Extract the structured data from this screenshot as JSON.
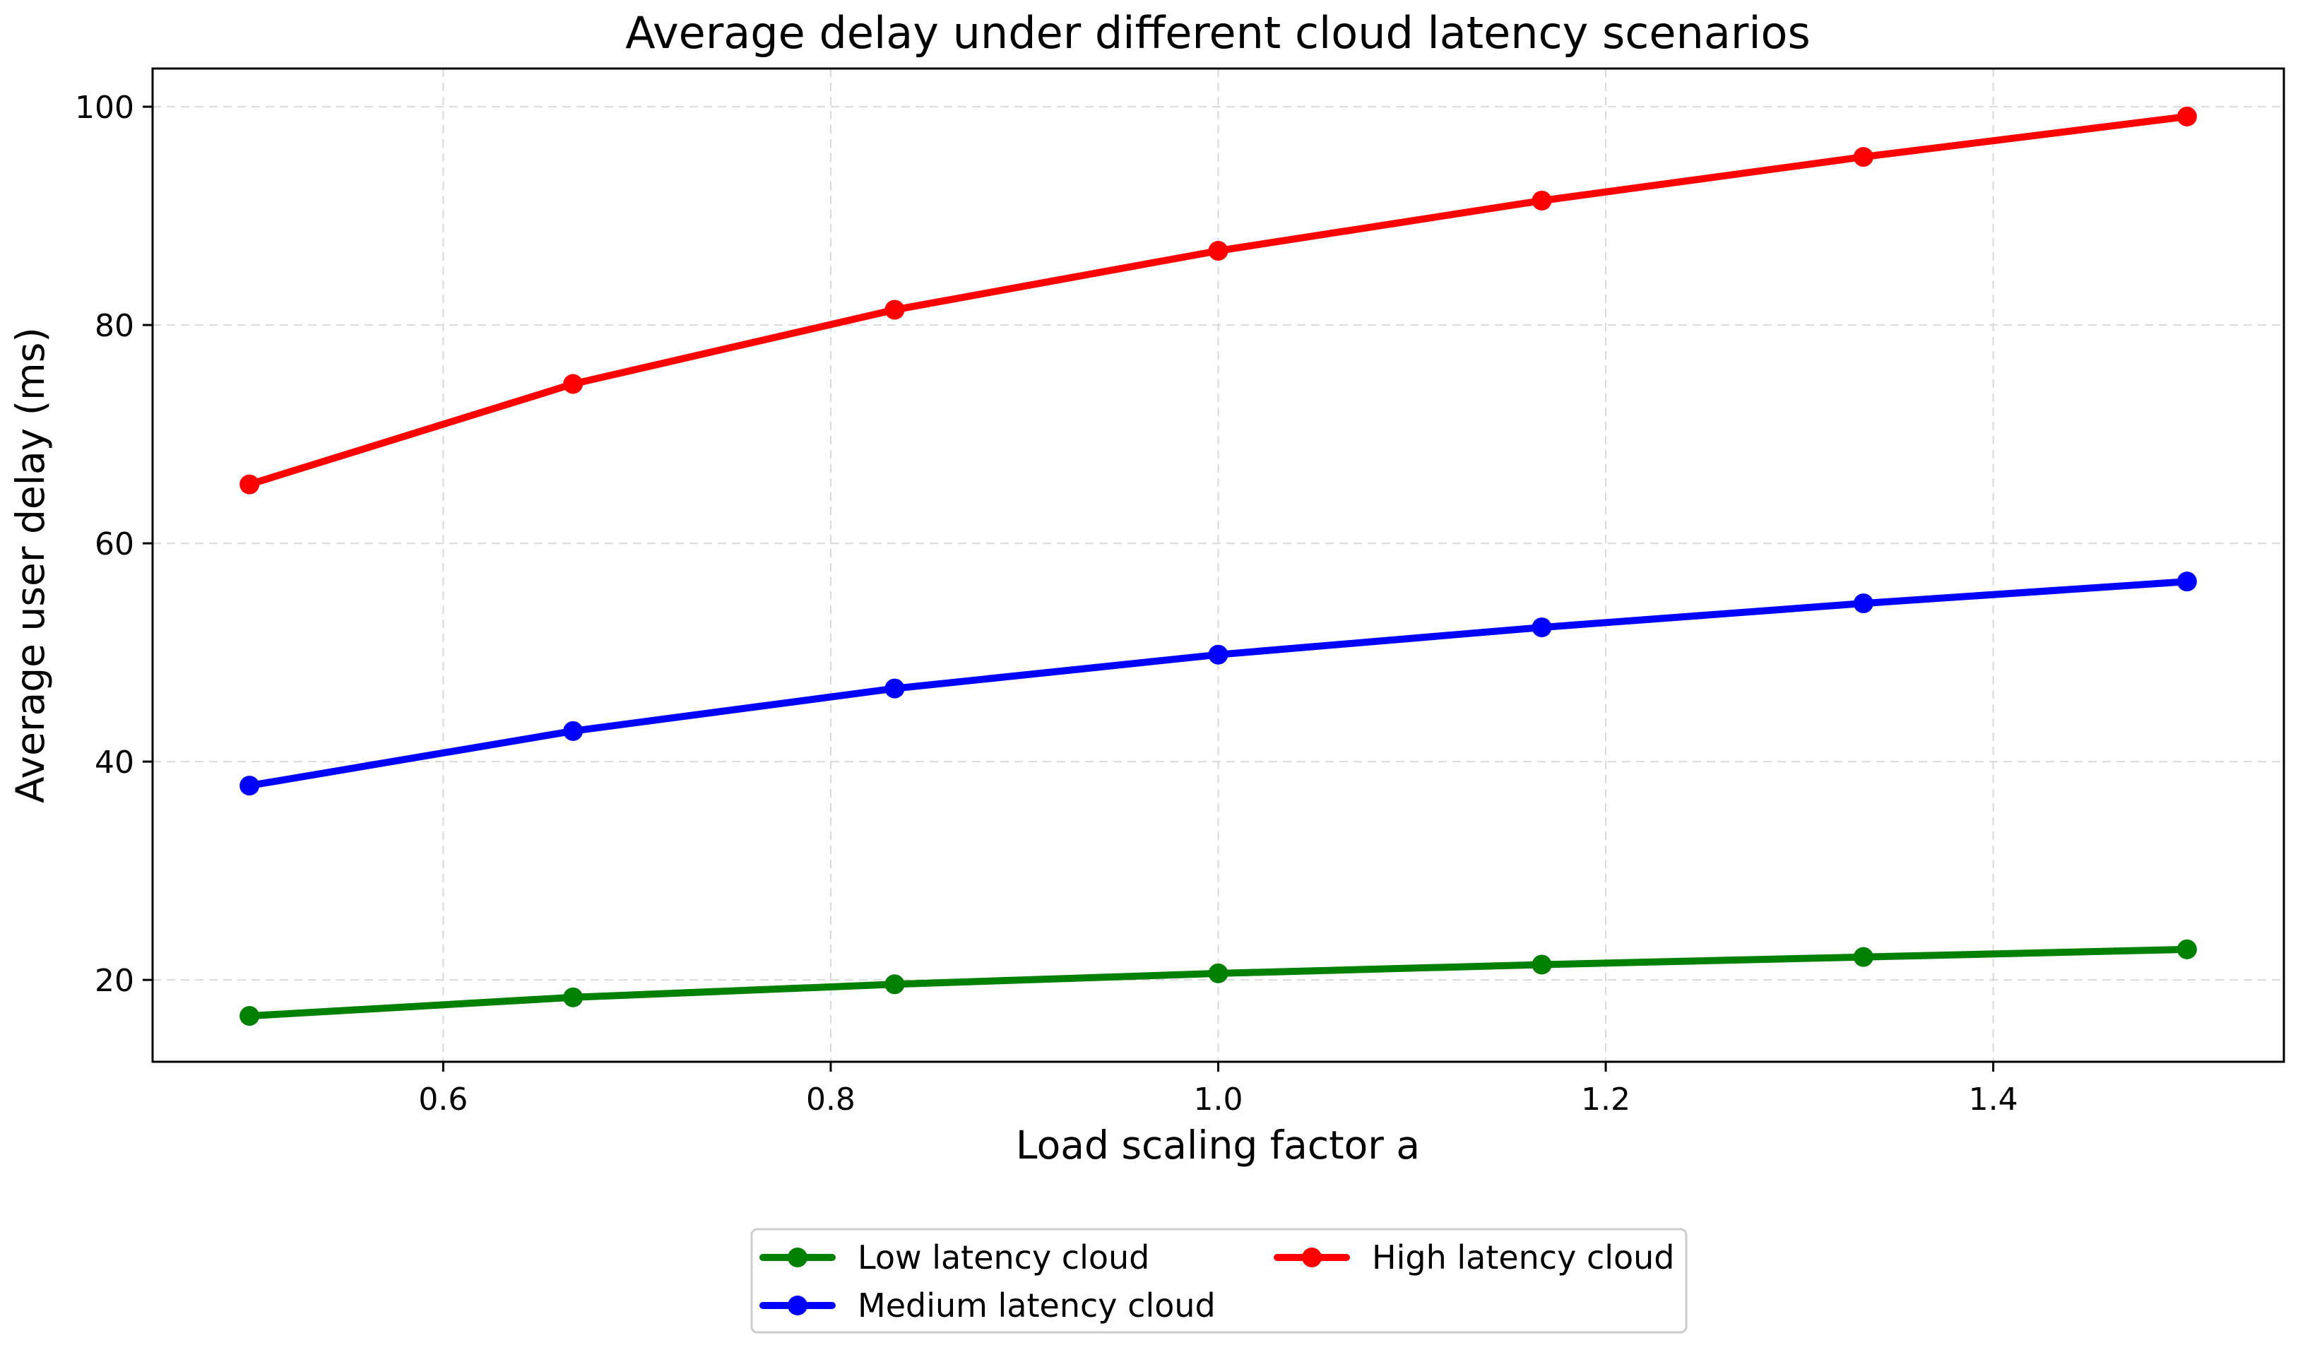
{
  "chart_data": {
    "type": "line",
    "title": "Average delay under different cloud latency scenarios",
    "xlabel": "Load scaling factor a",
    "ylabel": "Average user delay (ms)",
    "xlim": [
      0.45,
      1.55
    ],
    "ylim": [
      12.5,
      103.5
    ],
    "x_ticks": [
      0.6,
      0.8,
      1.0,
      1.2,
      1.4
    ],
    "x_tick_labels": [
      "0.6",
      "0.8",
      "1.0",
      "1.2",
      "1.4"
    ],
    "y_ticks": [
      20,
      40,
      60,
      80,
      100
    ],
    "y_tick_labels": [
      "20",
      "40",
      "60",
      "80",
      "100"
    ],
    "grid": true,
    "legend_position": "bottom-center, below plot",
    "x": [
      0.5,
      0.667,
      0.833,
      1.0,
      1.167,
      1.333,
      1.5
    ],
    "series": [
      {
        "name": "Low latency cloud",
        "color": "#008000",
        "values": [
          16.7,
          18.4,
          19.6,
          20.6,
          21.4,
          22.1,
          22.8
        ]
      },
      {
        "name": "Medium latency cloud",
        "color": "#0000ff",
        "values": [
          37.8,
          42.8,
          46.7,
          49.8,
          52.3,
          54.5,
          56.5
        ]
      },
      {
        "name": "High latency cloud",
        "color": "#ff0000",
        "values": [
          65.4,
          74.6,
          81.4,
          86.8,
          91.4,
          95.4,
          99.1
        ]
      }
    ]
  }
}
